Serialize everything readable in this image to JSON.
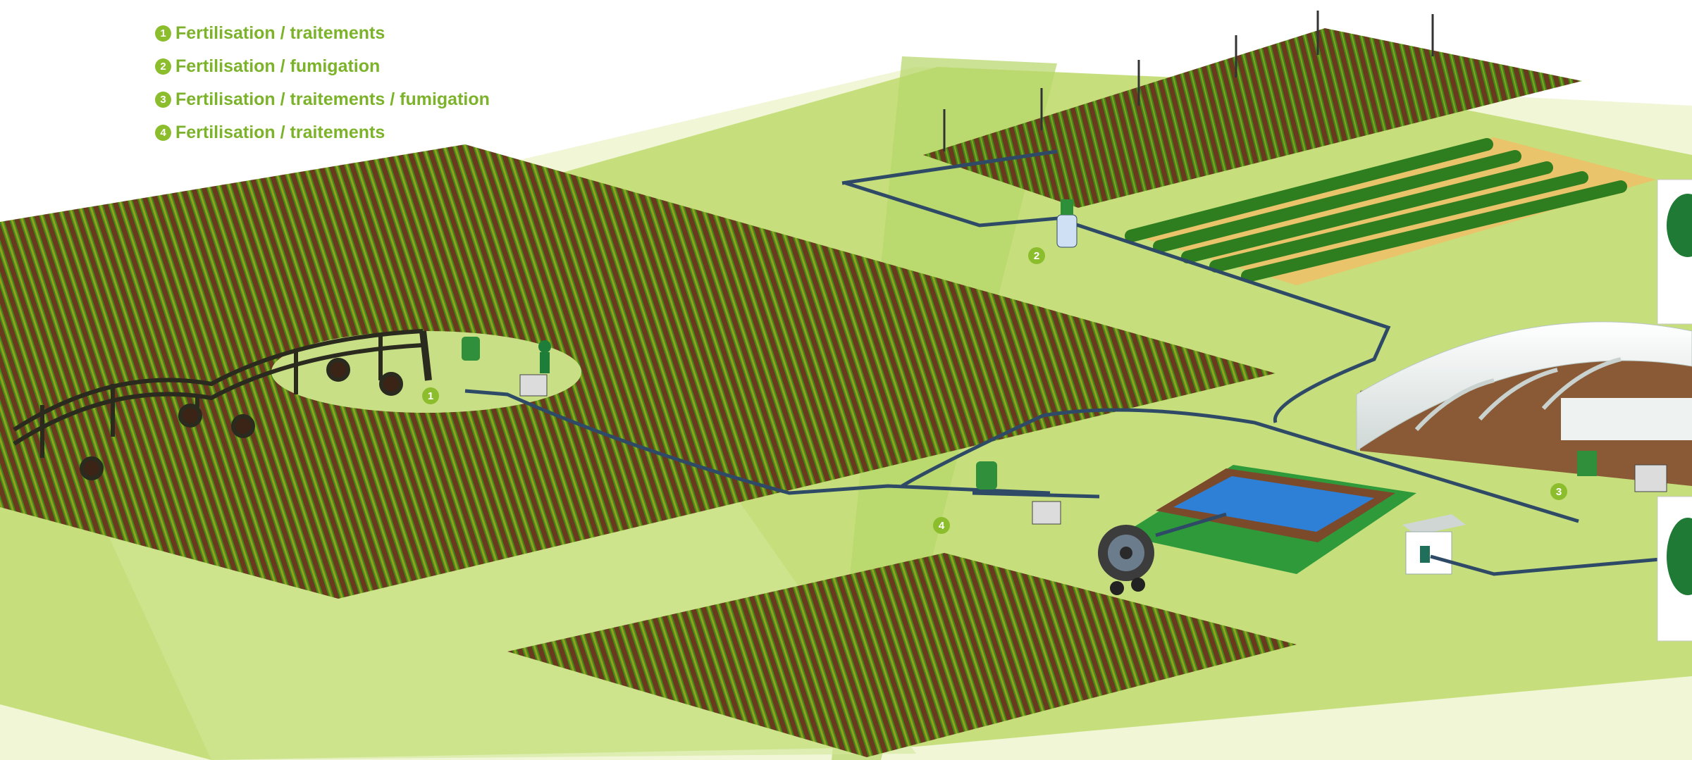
{
  "legend": {
    "items": [
      {
        "num": "1",
        "text": "Fertilisation / traitements"
      },
      {
        "num": "2",
        "text": "Fertilisation / fumigation"
      },
      {
        "num": "3",
        "text": "Fertilisation / traitements / fumigation"
      },
      {
        "num": "4",
        "text": "Fertilisation / traitements"
      }
    ]
  },
  "markers": {
    "m1": "1",
    "m2": "2",
    "m3": "3",
    "m4": "4"
  },
  "colors": {
    "legend_text": "#7cb32a",
    "badge": "#8cbd2c",
    "soil": "#6b3a1e",
    "crop": "#3f8a1c",
    "grass": "#c4de7a",
    "pipe": "#2f4a66",
    "pond": "#2e7fd6"
  }
}
